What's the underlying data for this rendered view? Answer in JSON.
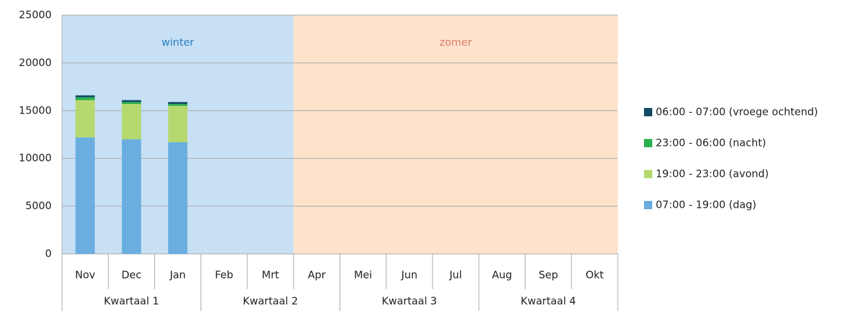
{
  "chart_data": {
    "type": "stacked-bar",
    "categories": [
      "Nov",
      "Dec",
      "Jan",
      "Feb",
      "Mrt",
      "Apr",
      "Mei",
      "Jun",
      "Jul",
      "Aug",
      "Sep",
      "Okt"
    ],
    "groups": [
      {
        "label": "Kwartaal 1",
        "from": "Nov",
        "to": "Jan"
      },
      {
        "label": "Kwartaal 2",
        "from": "Feb",
        "to": "Apr"
      },
      {
        "label": "Kwartaal 3",
        "from": "Mei",
        "to": "Jul"
      },
      {
        "label": "Kwartaal 4",
        "from": "Aug",
        "to": "Okt"
      }
    ],
    "bands": [
      {
        "label": "winter",
        "from": "Nov",
        "to": "Mrt",
        "color": "#c8e0f4",
        "text_color": "#2a7fc0"
      },
      {
        "label": "zomer",
        "from": "Apr",
        "to": "Okt",
        "color": "#fde3cc",
        "text_color": "#e07a6a"
      }
    ],
    "series": [
      {
        "name": "07:00 - 19:00 (dag)",
        "color": "#6aaee0",
        "values": [
          12200,
          12000,
          11700,
          null,
          null,
          null,
          null,
          null,
          null,
          null,
          null,
          null
        ]
      },
      {
        "name": "19:00 - 23:00 (avond)",
        "color": "#b5d96e",
        "values": [
          3900,
          3700,
          3800,
          null,
          null,
          null,
          null,
          null,
          null,
          null,
          null,
          null
        ]
      },
      {
        "name": "23:00 - 06:00 (nacht)",
        "color": "#2ab04e",
        "values": [
          300,
          200,
          200,
          null,
          null,
          null,
          null,
          null,
          null,
          null,
          null,
          null
        ]
      },
      {
        "name": "06:00 - 07:00 (vroege ochtend)",
        "color": "#0f4a66",
        "values": [
          200,
          200,
          200,
          null,
          null,
          null,
          null,
          null,
          null,
          null,
          null,
          null
        ]
      }
    ],
    "ylim": [
      0,
      25000
    ],
    "yticks": [
      0,
      5000,
      10000,
      15000,
      20000,
      25000
    ],
    "grid": true,
    "legend": "right"
  }
}
